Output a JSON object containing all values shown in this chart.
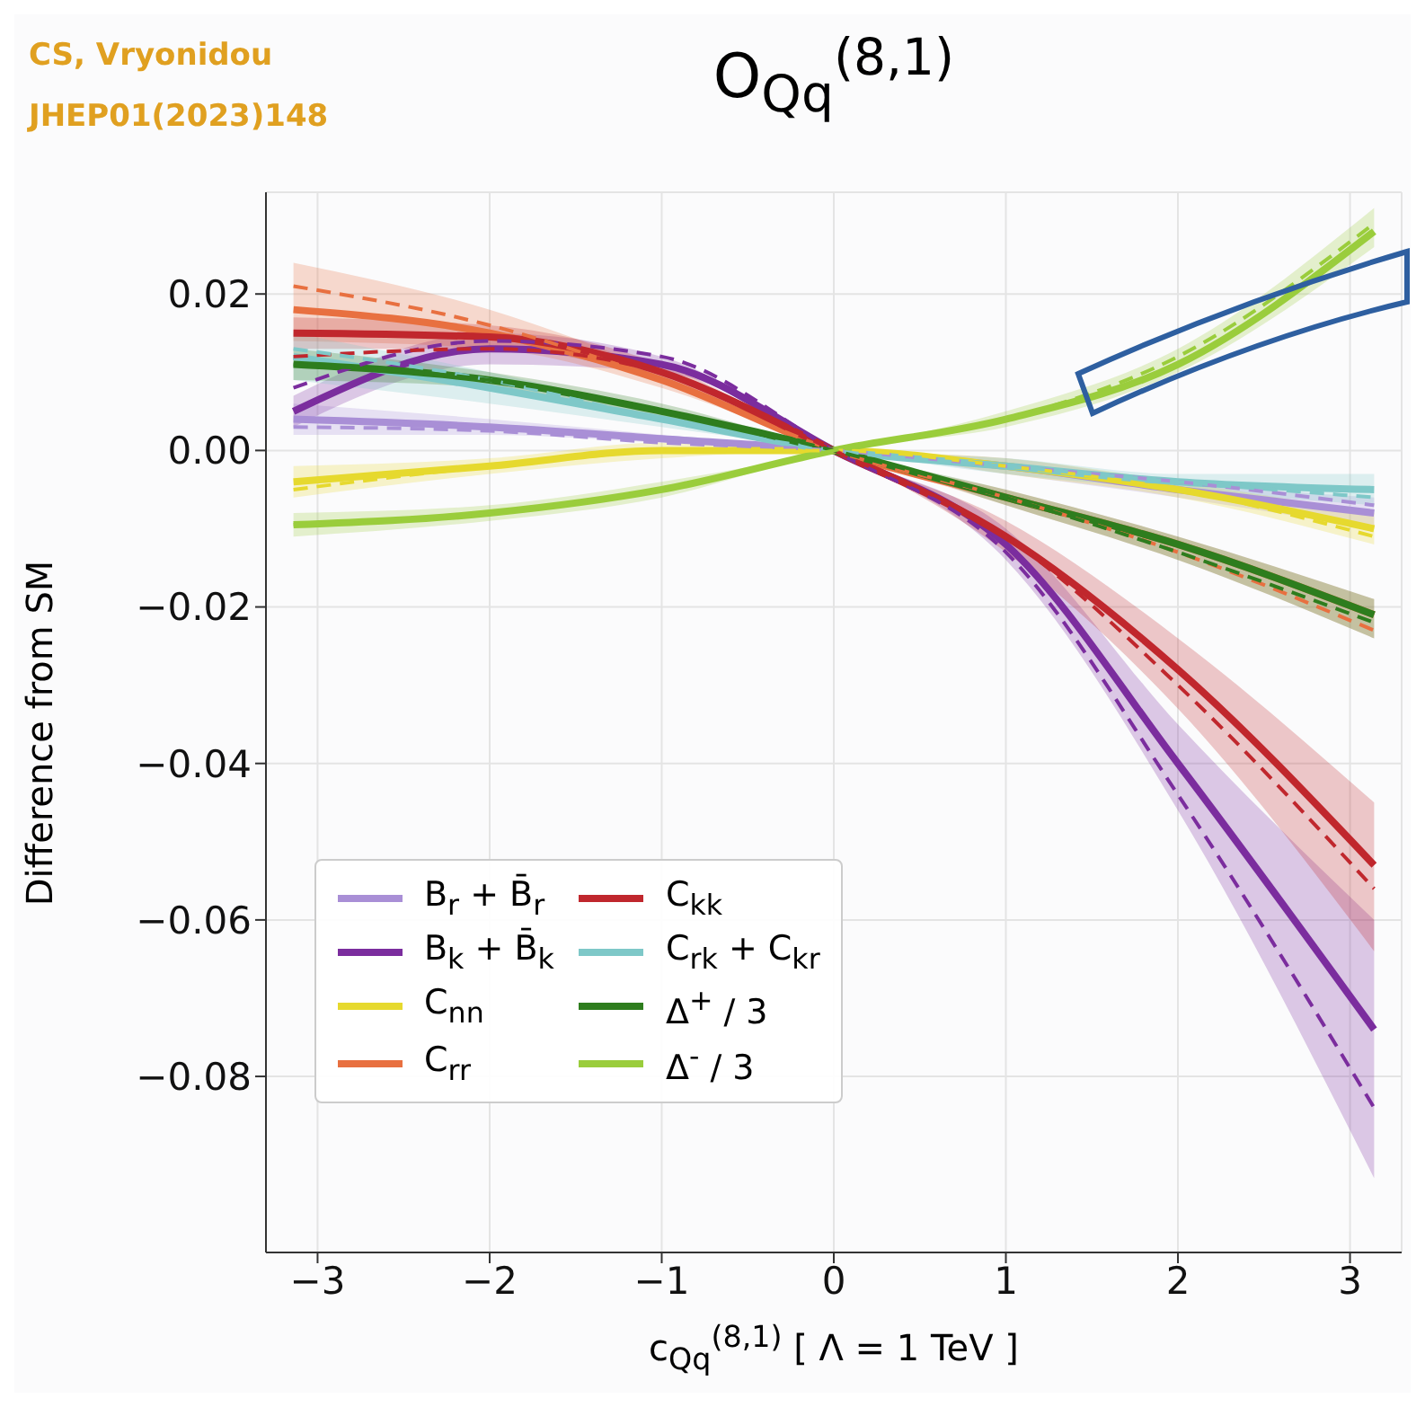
{
  "chart_data": {
    "type": "line",
    "title": "O$_{Qq}$$^{(8,1)}$",
    "xlabel": "c$_{Qq}$$^{(8,1)}$ [ Λ = 1 TeV ]",
    "ylabel": "Difference from SM",
    "annotations": [
      "CS, Vryonidou",
      "JHEP01(2023)148"
    ],
    "x": [
      -3.14,
      -2,
      -1,
      0,
      1,
      2,
      3.14
    ],
    "xlim": [
      -3.3,
      3.3
    ],
    "xticks": [
      -3,
      -2,
      -1,
      0,
      1,
      2,
      3
    ],
    "ylim": [
      -0.1025,
      0.033
    ],
    "yticks": [
      -0.08,
      -0.06,
      -0.04,
      -0.02,
      {
        "value": 0,
        "label": "0.00"
      },
      0.02
    ],
    "grid": true,
    "legend": "bottom left",
    "series": [
      {
        "name": "B$_{r}$ + B̄$_{r}$",
        "color": "#a98fd6",
        "values": [
          0.004,
          0.003,
          0.0015,
          0,
          -0.002,
          -0.005,
          -0.008
        ],
        "lower": [
          0.002,
          0.002,
          0.001,
          0,
          -0.003,
          -0.006,
          -0.01
        ],
        "upper": [
          0.006,
          0.004,
          0.002,
          0,
          -0.001,
          -0.004,
          -0.006
        ]
      },
      {
        "name": "B$_{k}$ + B̄$_{k}$",
        "color": "#7b2d9e",
        "values": [
          0.005,
          0.013,
          0.011,
          0,
          -0.012,
          -0.04,
          -0.074
        ],
        "lower": [
          0.003,
          0.011,
          0.01,
          0,
          -0.014,
          -0.046,
          -0.093
        ],
        "upper": [
          0.007,
          0.015,
          0.012,
          0,
          -0.01,
          -0.035,
          -0.06
        ]
      },
      {
        "name": "C$_{nn}$",
        "color": "#e6d92e",
        "values": [
          -0.004,
          -0.002,
          0,
          0,
          -0.002,
          -0.005,
          -0.01
        ],
        "lower": [
          -0.006,
          -0.003,
          -0.001,
          0,
          -0.003,
          -0.006,
          -0.012
        ],
        "upper": [
          -0.002,
          -0.001,
          0.001,
          0,
          -0.001,
          -0.004,
          -0.008
        ]
      },
      {
        "name": "C$_{rr}$",
        "color": "#e87040",
        "values": [
          0.018,
          0.015,
          0.009,
          0,
          -0.006,
          -0.012,
          -0.021
        ],
        "lower": [
          0.014,
          0.013,
          0.008,
          0,
          -0.007,
          -0.014,
          -0.024
        ],
        "upper": [
          0.024,
          0.018,
          0.01,
          0,
          -0.005,
          -0.011,
          -0.019
        ]
      },
      {
        "name": "C$_{kk}$",
        "color": "#c0272d",
        "values": [
          0.015,
          0.0145,
          0.01,
          0,
          -0.011,
          -0.028,
          -0.053
        ],
        "lower": [
          0.013,
          0.013,
          0.009,
          0,
          -0.013,
          -0.033,
          -0.064
        ],
        "upper": [
          0.017,
          0.016,
          0.011,
          0,
          -0.009,
          -0.024,
          -0.045
        ]
      },
      {
        "name": "C$_{rk}$ + C$_{kr}$",
        "color": "#7ec8c8",
        "values": [
          0.012,
          0.008,
          0.004,
          0,
          -0.002,
          -0.004,
          -0.005
        ],
        "lower": [
          0.009,
          0.006,
          0.003,
          0,
          -0.003,
          -0.005,
          -0.007
        ],
        "upper": [
          0.015,
          0.01,
          0.005,
          0,
          -0.001,
          -0.003,
          -0.003
        ]
      },
      {
        "name": "Δ$^{+}$ / 3",
        "color": "#2e7d1e",
        "values": [
          0.011,
          0.009,
          0.005,
          0,
          -0.006,
          -0.012,
          -0.021
        ],
        "lower": [
          0.009,
          0.008,
          0.004,
          0,
          -0.007,
          -0.014,
          -0.024
        ],
        "upper": [
          0.013,
          0.01,
          0.006,
          0,
          -0.005,
          -0.011,
          -0.019
        ]
      },
      {
        "name": "Δ$^{-}$ / 3",
        "color": "#9acd3c",
        "values": [
          -0.0095,
          -0.008,
          -0.005,
          0,
          0.004,
          0.011,
          0.028
        ],
        "lower": [
          -0.011,
          -0.009,
          -0.006,
          0,
          0.003,
          0.01,
          0.026
        ],
        "upper": [
          -0.008,
          -0.007,
          -0.004,
          0,
          0.005,
          0.013,
          0.031
        ]
      },
      {
        "color": "#a98fd6",
        "line_style": "dashed",
        "values": [
          0.003,
          0.0025,
          0.001,
          0,
          -0.002,
          -0.004,
          -0.007
        ]
      },
      {
        "color": "#7b2d9e",
        "line_style": "dashed",
        "values": [
          0.008,
          0.014,
          0.012,
          0,
          -0.013,
          -0.044,
          -0.084
        ]
      },
      {
        "color": "#e6d92e",
        "line_style": "dashed",
        "values": [
          -0.005,
          -0.002,
          0,
          0,
          -0.002,
          -0.005,
          -0.011
        ]
      },
      {
        "color": "#e87040",
        "line_style": "dashed",
        "values": [
          0.021,
          0.016,
          0.009,
          0,
          -0.006,
          -0.013,
          -0.023
        ]
      },
      {
        "color": "#c0272d",
        "line_style": "dashed",
        "values": [
          0.012,
          0.013,
          0.01,
          0,
          -0.011,
          -0.03,
          -0.056
        ]
      },
      {
        "color": "#7ec8c8",
        "line_style": "dashed",
        "values": [
          0.013,
          0.009,
          0.004,
          0,
          -0.002,
          -0.004,
          -0.006
        ]
      },
      {
        "color": "#2e7d1e",
        "line_style": "dashed",
        "values": [
          0.011,
          0.009,
          0.005,
          0,
          -0.006,
          -0.013,
          -0.022
        ]
      },
      {
        "color": "#9acd3c",
        "line_style": "dashed",
        "values": [
          -0.0095,
          -0.008,
          -0.005,
          0,
          0.004,
          0.012,
          0.029
        ]
      }
    ]
  }
}
